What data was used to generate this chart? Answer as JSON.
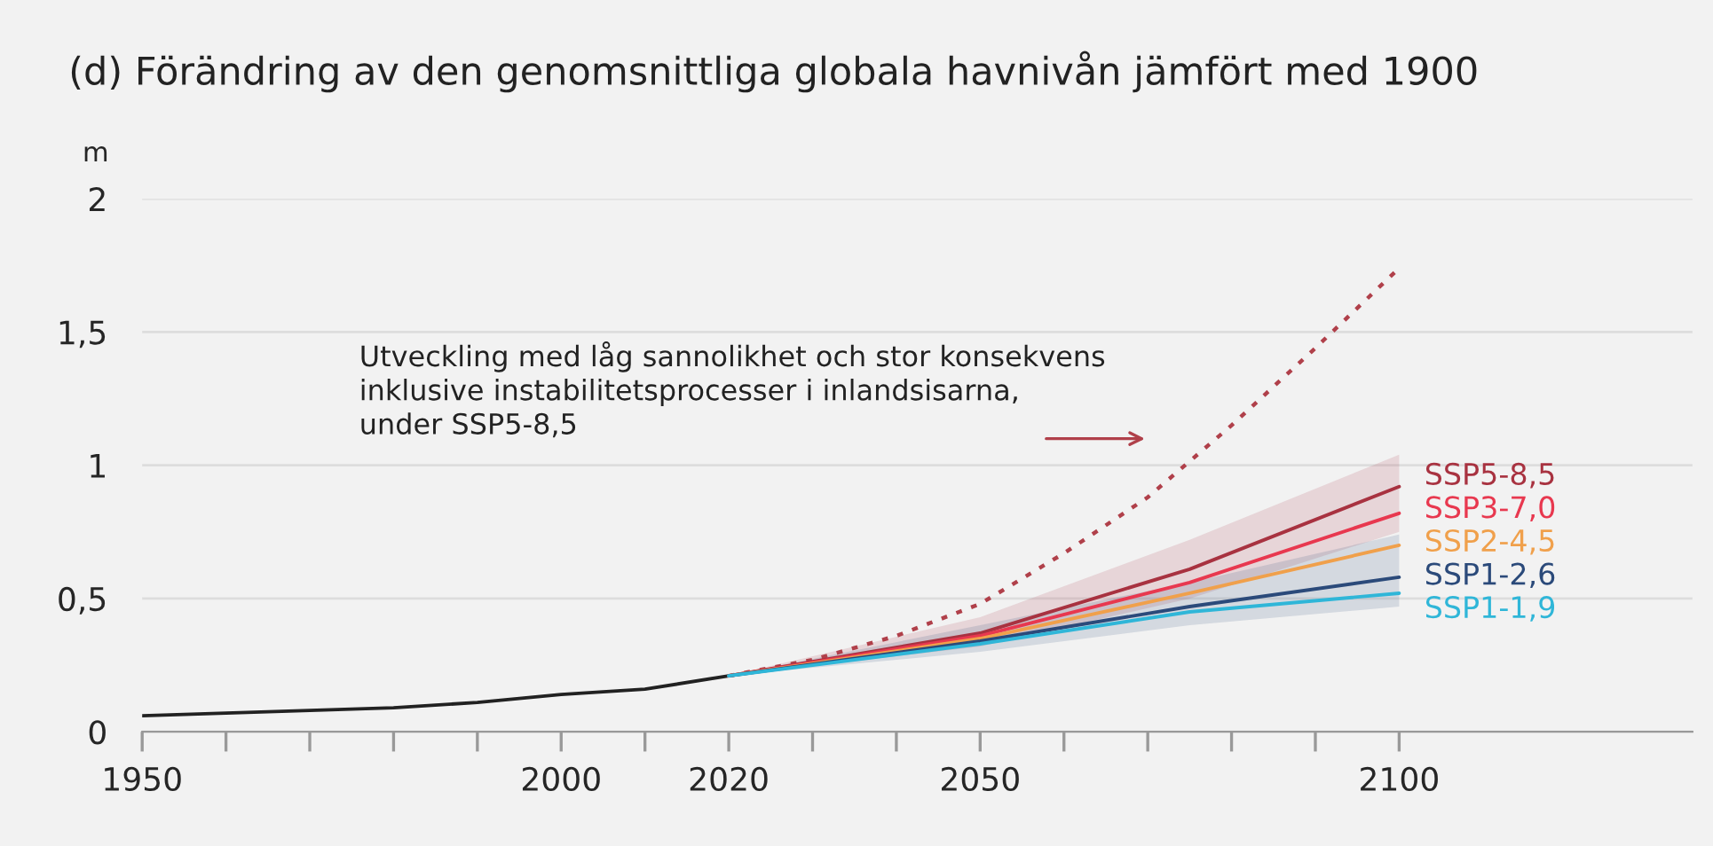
{
  "chart_data": {
    "type": "line",
    "title": "(d) Förändring av den genomsnittliga globala havnivån jämfört med 1900",
    "ylabel": "m",
    "xlim": [
      1950,
      2135
    ],
    "ylim": [
      0,
      2
    ],
    "xticks": [
      1950,
      {
        "value": 1960,
        "label": null
      },
      {
        "value": 1970,
        "label": null
      },
      {
        "value": 1980,
        "label": null
      },
      {
        "value": 1990,
        "label": null
      },
      2000,
      {
        "value": 2010,
        "label": null
      },
      2020,
      {
        "value": 2030,
        "label": null
      },
      {
        "value": 2040,
        "label": null
      },
      2050,
      {
        "value": 2060,
        "label": null
      },
      {
        "value": 2070,
        "label": null
      },
      {
        "value": 2080,
        "label": null
      },
      {
        "value": 2090,
        "label": null
      },
      2100
    ],
    "yticks": [
      0,
      {
        "value": 0.5,
        "label": "0,5"
      },
      1,
      {
        "value": 1.5,
        "label": "1,5"
      },
      2
    ],
    "grid": "y",
    "legend": false,
    "annotations": [
      "Utveckling med låg sannolikhet och stor konsekvens\ninklusive instabilitetsprocesser i inlandsisarna,\nunder SSP5-8,5"
    ],
    "series": [
      {
        "color": "#222222",
        "x": [
          1950,
          1960,
          1970,
          1980,
          1990,
          2000,
          2010,
          2020
        ],
        "values": [
          0.06,
          0.07,
          0.08,
          0.09,
          0.11,
          0.14,
          0.16,
          0.21
        ]
      },
      {
        "color": "#b0404a",
        "line_style": "dotted",
        "x": [
          2020,
          2030,
          2040,
          2050,
          2060,
          2070,
          2080,
          2090,
          2100
        ],
        "values": [
          0.21,
          0.27,
          0.36,
          0.48,
          0.67,
          0.88,
          1.15,
          1.44,
          1.74
        ]
      },
      {
        "name": "SSP5-8,5",
        "color": "#a83240",
        "x": [
          2020,
          2050,
          2075,
          2100
        ],
        "values": [
          0.21,
          0.37,
          0.61,
          0.92
        ],
        "lower": [
          0.21,
          0.32,
          0.5,
          0.75
        ],
        "upper": [
          0.21,
          0.43,
          0.72,
          1.04
        ]
      },
      {
        "name": "SSP3-7,0",
        "color": "#e8384f",
        "x": [
          2020,
          2050,
          2075,
          2100
        ],
        "values": [
          0.21,
          0.36,
          0.56,
          0.82
        ]
      },
      {
        "name": "SSP2-4,5",
        "color": "#f0a04b",
        "x": [
          2020,
          2050,
          2075,
          2100
        ],
        "values": [
          0.21,
          0.35,
          0.52,
          0.7
        ]
      },
      {
        "name": "SSP1-2,6",
        "color": "#2b4a7a",
        "x": [
          2020,
          2050,
          2075,
          2100
        ],
        "values": [
          0.21,
          0.34,
          0.47,
          0.58
        ],
        "lower": [
          0.21,
          0.3,
          0.4,
          0.47
        ],
        "upper": [
          0.21,
          0.4,
          0.56,
          0.74
        ]
      },
      {
        "name": "SSP1-1,9",
        "color": "#2fb6d8",
        "x": [
          2020,
          2050,
          2075,
          2100
        ],
        "values": [
          0.21,
          0.33,
          0.45,
          0.52
        ]
      }
    ]
  }
}
